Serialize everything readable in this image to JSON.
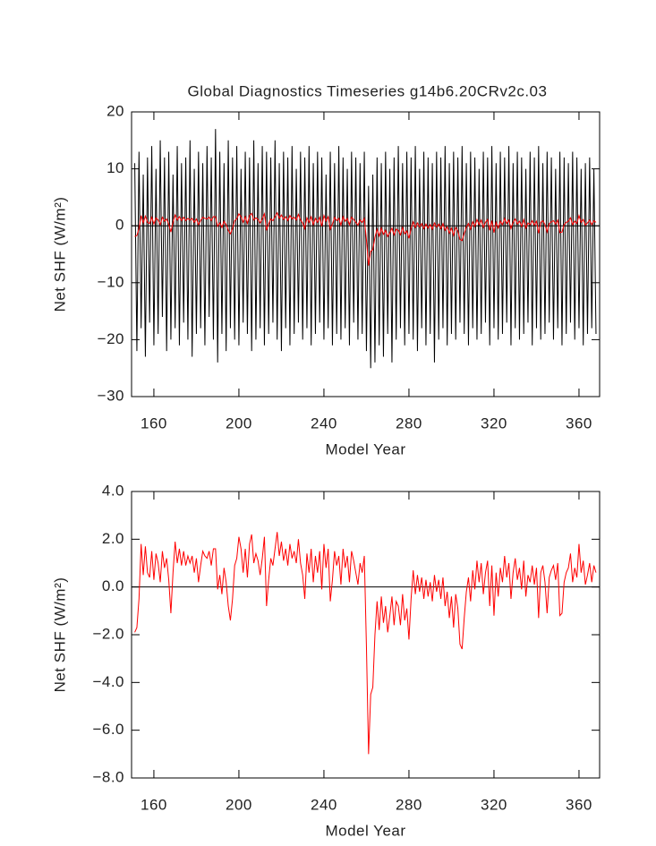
{
  "chart_data": [
    {
      "type": "line",
      "title": "Global Diagnostics Timeseries g14b6.20CRv2c.03",
      "xlabel": "Model Year",
      "ylabel": "Net SHF (W/m²)",
      "xlim": [
        149.5,
        369.7
      ],
      "ylim": [
        -30,
        20
      ],
      "xticks": [
        160,
        200,
        240,
        280,
        320,
        360
      ],
      "yticks": [
        {
          "value": -30,
          "label": "−30"
        },
        {
          "value": -20,
          "label": "−20"
        },
        {
          "value": -10,
          "label": "−10"
        },
        0,
        10,
        20
      ],
      "x": [
        151,
        152,
        153,
        154,
        155,
        156,
        157,
        158,
        159,
        160,
        161,
        162,
        163,
        164,
        165,
        166,
        167,
        168,
        169,
        170,
        171,
        172,
        173,
        174,
        175,
        176,
        177,
        178,
        179,
        180,
        181,
        182,
        183,
        184,
        185,
        186,
        187,
        188,
        189,
        190,
        191,
        192,
        193,
        194,
        195,
        196,
        197,
        198,
        199,
        200,
        201,
        202,
        203,
        204,
        205,
        206,
        207,
        208,
        209,
        210,
        211,
        212,
        213,
        214,
        215,
        216,
        217,
        218,
        219,
        220,
        221,
        222,
        223,
        224,
        225,
        226,
        227,
        228,
        229,
        230,
        231,
        232,
        233,
        234,
        235,
        236,
        237,
        238,
        239,
        240,
        241,
        242,
        243,
        244,
        245,
        246,
        247,
        248,
        249,
        250,
        251,
        252,
        253,
        254,
        255,
        256,
        257,
        258,
        259,
        260,
        261,
        262,
        263,
        264,
        265,
        266,
        267,
        268,
        269,
        270,
        271,
        272,
        273,
        274,
        275,
        276,
        277,
        278,
        279,
        280,
        281,
        282,
        283,
        284,
        285,
        286,
        287,
        288,
        289,
        290,
        291,
        292,
        293,
        294,
        295,
        296,
        297,
        298,
        299,
        300,
        301,
        302,
        303,
        304,
        305,
        306,
        307,
        308,
        309,
        310,
        311,
        312,
        313,
        314,
        315,
        316,
        317,
        318,
        319,
        320,
        321,
        322,
        323,
        324,
        325,
        326,
        327,
        328,
        329,
        330,
        331,
        332,
        333,
        334,
        335,
        336,
        337,
        338,
        339,
        340,
        341,
        342,
        343,
        344,
        345,
        346,
        347,
        348,
        349,
        350,
        351,
        352,
        353,
        354,
        355,
        356,
        357,
        358,
        359,
        360,
        361,
        362,
        363,
        364,
        365,
        366,
        367,
        368
      ],
      "series": [
        {
          "color": "#000000",
          "values": [
            11,
            -22,
            13,
            -18,
            9,
            -23,
            12,
            -17,
            14,
            -21,
            10,
            -19,
            15,
            -16,
            12,
            -22,
            13,
            -20,
            9,
            -18,
            14,
            -21,
            11,
            -17,
            12,
            -20,
            15,
            -23,
            10,
            -19,
            13,
            -18,
            11,
            -21,
            14,
            -16,
            12,
            -20,
            17,
            -24,
            13,
            -19,
            11,
            -22,
            15,
            -18,
            12,
            -20,
            14,
            -21,
            10,
            -17,
            13,
            -19,
            12,
            -22,
            15,
            -20,
            11,
            -18,
            14,
            -21,
            13,
            -19,
            12,
            -17,
            15,
            -20,
            11,
            -22,
            13,
            -18,
            12,
            -21,
            14,
            -19,
            10,
            -17,
            13,
            -20,
            12,
            -18,
            14,
            -21,
            11,
            -19,
            13,
            -17,
            12,
            -20,
            9,
            -18,
            13,
            -21,
            11,
            -19,
            14,
            -20,
            12,
            -18,
            10,
            -21,
            13,
            -17,
            12,
            -20,
            11,
            -19,
            13,
            -22,
            7,
            -25,
            9,
            -24,
            12,
            -21,
            11,
            -23,
            13,
            -19,
            10,
            -24,
            12,
            -20,
            14,
            -18,
            11,
            -21,
            13,
            -19,
            12,
            -20,
            14,
            -22,
            10,
            -18,
            13,
            -21,
            12,
            -19,
            11,
            -24,
            13,
            -20,
            12,
            -18,
            14,
            -21,
            11,
            -19,
            13,
            -20,
            12,
            -17,
            14,
            -19,
            11,
            -21,
            13,
            -18,
            12,
            -20,
            10,
            -19,
            13,
            -17,
            12,
            -21,
            14,
            -18,
            11,
            -20,
            13,
            -19,
            12,
            -17,
            14,
            -21,
            11,
            -18,
            13,
            -20,
            12,
            -19,
            10,
            -17,
            13,
            -21,
            12,
            -18,
            14,
            -20,
            11,
            -19,
            13,
            -17,
            12,
            -20,
            10,
            -18,
            13,
            -21,
            12,
            -19,
            11,
            -17,
            13,
            -20,
            12,
            -18,
            10,
            -21,
            11,
            -19,
            12,
            -18,
            10,
            -19
          ]
        },
        {
          "color": "#ff0000",
          "values": [
            -1.9,
            -1.7,
            -0.5,
            1.8,
            0.5,
            1.7,
            0.6,
            0.4,
            1.5,
            0.3,
            1.4,
            1.0,
            0.2,
            1.5,
            0.8,
            1.2,
            0.3,
            -1.1,
            0.6,
            1.9,
            1.0,
            1.6,
            0.9,
            1.5,
            0.9,
            1.3,
            1.0,
            1.3,
            0.6,
            1.2,
            0.2,
            0.9,
            1.5,
            1.3,
            1.2,
            1.5,
            0.9,
            1.6,
            1.6,
            -0.1,
            0.5,
            -0.3,
            0.8,
            0.2,
            -0.8,
            -1.4,
            -0.5,
            0.9,
            1.2,
            2.1,
            1.6,
            0.6,
            1.6,
            0.4,
            1.8,
            2.2,
            1.0,
            1.4,
            1.1,
            0.5,
            1.2,
            2.1,
            -0.8,
            0.3,
            1.2,
            0.9,
            1.6,
            2.3,
            1.3,
            1.9,
            1.1,
            1.6,
            0.9,
            1.8,
            1.2,
            1.5,
            1.0,
            2.0,
            1.0,
            0.5,
            -0.5,
            1.4,
            0.6,
            1.6,
            0.2,
            1.3,
            0.6,
            1.5,
            -0.1,
            1.8,
            0.8,
            1.6,
            -0.6,
            0.3,
            1.5,
            0.9,
            1.3,
            0.1,
            1.6,
            0.8,
            1.3,
            0.2,
            1.5,
            1.1,
            0.6,
            0.1,
            1.0,
            0.6,
            1.3,
            -2.5,
            -7.0,
            -4.5,
            -4.2,
            -2.0,
            -0.6,
            -1.8,
            -0.4,
            -1.5,
            -0.8,
            -1.9,
            -1.2,
            -0.4,
            -1.6,
            -0.6,
            -0.8,
            -1.6,
            -0.3,
            -1.4,
            -0.9,
            -2.2,
            -0.5,
            0.7,
            -0.3,
            0.5,
            -0.2,
            0.4,
            -0.5,
            0.3,
            -0.4,
            0.2,
            -0.6,
            0.5,
            -0.2,
            0.3,
            -0.5,
            0.4,
            -0.8,
            -0.2,
            -1.3,
            -0.4,
            -1.7,
            -0.3,
            -0.9,
            -2.4,
            -2.6,
            -1.3,
            -0.2,
            0.4,
            -0.6,
            0.7,
            -0.1,
            1.1,
            0.2,
            1.0,
            -0.3,
            0.6,
            1.1,
            -0.8,
            0.9,
            -1.2,
            0.6,
            -0.4,
            0.8,
            0.2,
            1.3,
            0.4,
            1.0,
            -0.5,
            0.6,
            1.2,
            0.3,
            0.8,
            -0.1,
            1.1,
            -0.4,
            0.5,
            0.2,
            0.9,
            0.1,
            0.8,
            -1.3,
            0.6,
            0.9,
            0.2,
            -1.1,
            0.4,
            0.7,
            0.9,
            0.3,
            1.0,
            -1.2,
            -1.1,
            0.2,
            0.6,
            0.8,
            1.4,
            0.2,
            0.8,
            0.4,
            1.8,
            0.6,
            1.1,
            0.1,
            0.5,
            1.0,
            0.2,
            0.9,
            0.6
          ]
        }
      ]
    },
    {
      "type": "line",
      "xlabel": "Model Year",
      "ylabel": "Net SHF (W/m²)",
      "xlim": [
        149.5,
        369.7
      ],
      "ylim": [
        -8,
        4
      ],
      "xticks": [
        160,
        200,
        240,
        280,
        320,
        360
      ],
      "yticks": [
        {
          "value": -8,
          "label": "−8.0"
        },
        {
          "value": -6,
          "label": "−6.0"
        },
        {
          "value": -4,
          "label": "−4.0"
        },
        {
          "value": -2,
          "label": "−2.0"
        },
        {
          "value": 0,
          "label": "0.0"
        },
        {
          "value": 2,
          "label": "2.0"
        },
        {
          "value": 4,
          "label": "4.0"
        }
      ],
      "x": [
        151,
        152,
        153,
        154,
        155,
        156,
        157,
        158,
        159,
        160,
        161,
        162,
        163,
        164,
        165,
        166,
        167,
        168,
        169,
        170,
        171,
        172,
        173,
        174,
        175,
        176,
        177,
        178,
        179,
        180,
        181,
        182,
        183,
        184,
        185,
        186,
        187,
        188,
        189,
        190,
        191,
        192,
        193,
        194,
        195,
        196,
        197,
        198,
        199,
        200,
        201,
        202,
        203,
        204,
        205,
        206,
        207,
        208,
        209,
        210,
        211,
        212,
        213,
        214,
        215,
        216,
        217,
        218,
        219,
        220,
        221,
        222,
        223,
        224,
        225,
        226,
        227,
        228,
        229,
        230,
        231,
        232,
        233,
        234,
        235,
        236,
        237,
        238,
        239,
        240,
        241,
        242,
        243,
        244,
        245,
        246,
        247,
        248,
        249,
        250,
        251,
        252,
        253,
        254,
        255,
        256,
        257,
        258,
        259,
        260,
        261,
        262,
        263,
        264,
        265,
        266,
        267,
        268,
        269,
        270,
        271,
        272,
        273,
        274,
        275,
        276,
        277,
        278,
        279,
        280,
        281,
        282,
        283,
        284,
        285,
        286,
        287,
        288,
        289,
        290,
        291,
        292,
        293,
        294,
        295,
        296,
        297,
        298,
        299,
        300,
        301,
        302,
        303,
        304,
        305,
        306,
        307,
        308,
        309,
        310,
        311,
        312,
        313,
        314,
        315,
        316,
        317,
        318,
        319,
        320,
        321,
        322,
        323,
        324,
        325,
        326,
        327,
        328,
        329,
        330,
        331,
        332,
        333,
        334,
        335,
        336,
        337,
        338,
        339,
        340,
        341,
        342,
        343,
        344,
        345,
        346,
        347,
        348,
        349,
        350,
        351,
        352,
        353,
        354,
        355,
        356,
        357,
        358,
        359,
        360,
        361,
        362,
        363,
        364,
        365,
        366,
        367,
        368
      ],
      "series": [
        {
          "color": "#ff0000",
          "values": [
            -1.9,
            -1.7,
            -0.5,
            1.8,
            0.5,
            1.7,
            0.6,
            0.4,
            1.5,
            0.3,
            1.4,
            1.0,
            0.2,
            1.5,
            0.8,
            1.2,
            0.3,
            -1.1,
            0.6,
            1.9,
            1.0,
            1.6,
            0.9,
            1.5,
            0.9,
            1.3,
            1.0,
            1.3,
            0.6,
            1.2,
            0.2,
            0.9,
            1.5,
            1.3,
            1.2,
            1.5,
            0.9,
            1.6,
            1.6,
            -0.1,
            0.5,
            -0.3,
            0.8,
            0.2,
            -0.8,
            -1.4,
            -0.5,
            0.9,
            1.2,
            2.1,
            1.6,
            0.6,
            1.6,
            0.4,
            1.8,
            2.2,
            1.0,
            1.4,
            1.1,
            0.5,
            1.2,
            2.1,
            -0.8,
            0.3,
            1.2,
            0.9,
            1.6,
            2.3,
            1.3,
            1.9,
            1.1,
            1.6,
            0.9,
            1.8,
            1.2,
            1.5,
            1.0,
            2.0,
            1.0,
            0.5,
            -0.5,
            1.4,
            0.6,
            1.6,
            0.2,
            1.3,
            0.6,
            1.5,
            -0.1,
            1.8,
            0.8,
            1.6,
            -0.6,
            0.3,
            1.5,
            0.9,
            1.3,
            0.1,
            1.6,
            0.8,
            1.3,
            0.2,
            1.5,
            1.1,
            0.6,
            0.1,
            1.0,
            0.6,
            1.3,
            -2.5,
            -7.0,
            -4.5,
            -4.2,
            -2.0,
            -0.6,
            -1.8,
            -0.4,
            -1.5,
            -0.8,
            -1.9,
            -1.2,
            -0.4,
            -1.6,
            -0.6,
            -0.8,
            -1.6,
            -0.3,
            -1.4,
            -0.9,
            -2.2,
            -0.5,
            0.7,
            -0.3,
            0.5,
            -0.2,
            0.4,
            -0.5,
            0.3,
            -0.4,
            0.2,
            -0.6,
            0.5,
            -0.2,
            0.3,
            -0.5,
            0.4,
            -0.8,
            -0.2,
            -1.3,
            -0.4,
            -1.7,
            -0.3,
            -0.9,
            -2.4,
            -2.6,
            -1.3,
            -0.2,
            0.4,
            -0.6,
            0.7,
            -0.1,
            1.1,
            0.2,
            1.0,
            -0.3,
            0.6,
            1.1,
            -0.8,
            0.9,
            -1.2,
            0.6,
            -0.4,
            0.8,
            0.2,
            1.3,
            0.4,
            1.0,
            -0.5,
            0.6,
            1.2,
            0.3,
            0.8,
            -0.1,
            1.1,
            -0.4,
            0.5,
            0.2,
            0.9,
            0.1,
            0.8,
            -1.3,
            0.6,
            0.9,
            0.2,
            -1.1,
            0.4,
            0.7,
            0.9,
            0.3,
            1.0,
            -1.2,
            -1.1,
            0.2,
            0.6,
            0.8,
            1.4,
            0.2,
            0.8,
            0.4,
            1.8,
            0.6,
            1.1,
            0.1,
            0.5,
            1.0,
            0.2,
            0.9,
            0.6
          ]
        }
      ]
    }
  ]
}
